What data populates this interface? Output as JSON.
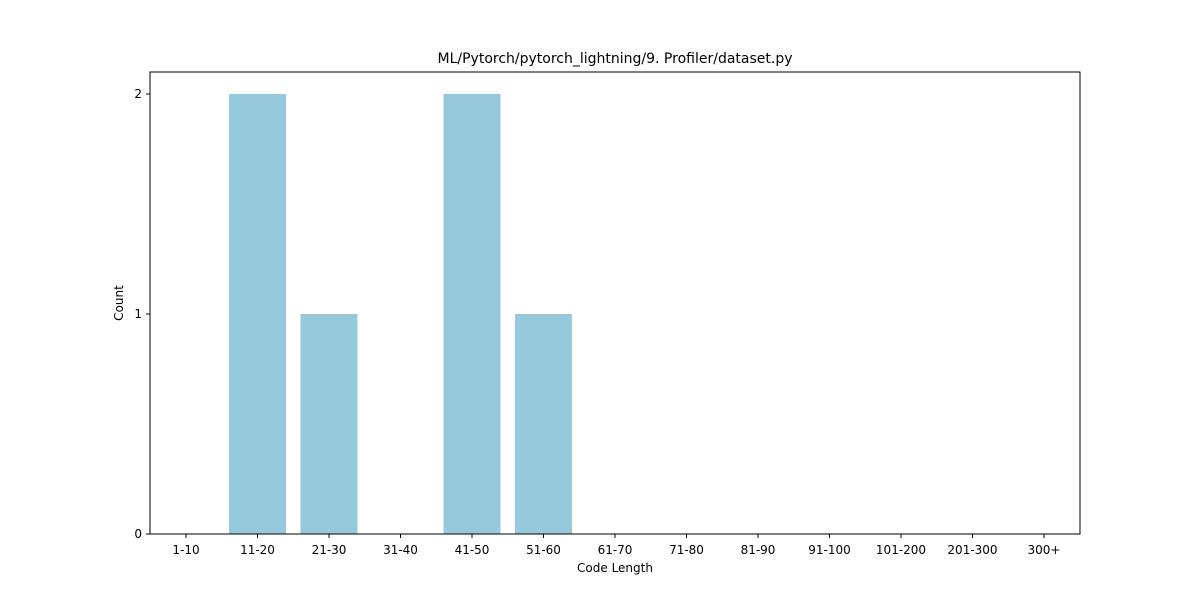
{
  "chart_data": {
    "type": "bar",
    "title": "ML/Pytorch/pytorch_lightning/9. Profiler/dataset.py",
    "xlabel": "Code Length",
    "ylabel": "Count",
    "categories": [
      "1-10",
      "11-20",
      "21-30",
      "31-40",
      "41-50",
      "51-60",
      "61-70",
      "71-80",
      "81-90",
      "91-100",
      "101-200",
      "201-300",
      "300+"
    ],
    "values": [
      0,
      2,
      1,
      0,
      2,
      1,
      0,
      0,
      0,
      0,
      0,
      0,
      0
    ],
    "yticks": [
      0,
      1,
      2
    ],
    "ylim": [
      0,
      2.1
    ],
    "bar_color": "#96c9dc",
    "grid": false,
    "legend": "none"
  }
}
